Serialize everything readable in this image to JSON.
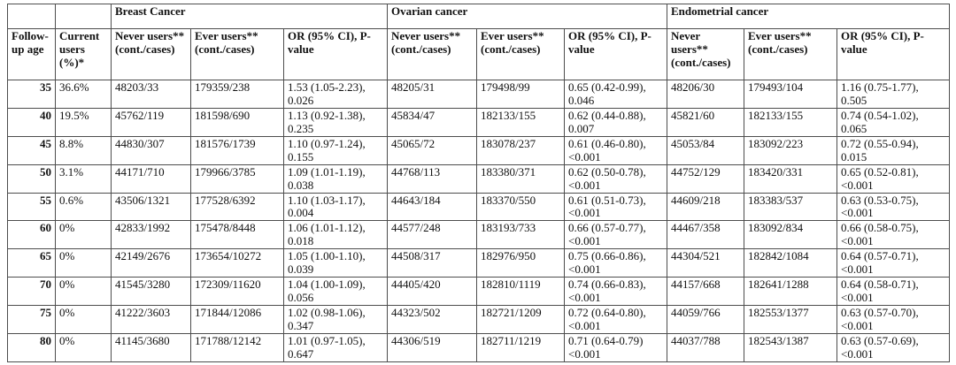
{
  "table": {
    "group_headers": [
      {
        "label": "",
        "span": 1
      },
      {
        "label": "",
        "span": 1
      },
      {
        "label": "Breast Cancer",
        "span": 3
      },
      {
        "label": "Ovarian cancer",
        "span": 3
      },
      {
        "label": "Endometrial cancer",
        "span": 3
      }
    ],
    "column_headers": [
      "Follow-up age",
      "Current users (%)*",
      "Never users** (cont./cases)",
      "Ever users** (cont./cases)",
      "OR (95% CI), P-value",
      "Never users** (cont./cases)",
      "Ever users** (cont./cases)",
      "OR (95% CI), P-value",
      "Never users** (cont./cases)",
      "Ever users** (cont./cases)",
      "OR (95% CI), P-value"
    ],
    "rows": [
      {
        "follow_up_age": "35",
        "current_users_pct": "36.6%",
        "breast": {
          "never": "48203/33",
          "ever": "179359/238",
          "or_p": "1.53 (1.05-2.23),\n0.026"
        },
        "ovarian": {
          "never": "48205/31",
          "ever": "179498/99",
          "or_p": "0.65 (0.42-0.99),\n0.046"
        },
        "endometrial": {
          "never": "48206/30",
          "ever": "179493/104",
          "or_p": "1.16 (0.75-1.77),\n0.505"
        }
      },
      {
        "follow_up_age": "40",
        "current_users_pct": "19.5%",
        "breast": {
          "never": "45762/119",
          "ever": "181598/690",
          "or_p": "1.13 (0.92-1.38),\n0.235"
        },
        "ovarian": {
          "never": "45834/47",
          "ever": "182133/155",
          "or_p": "0.62 (0.44-0.88),\n0.007"
        },
        "endometrial": {
          "never": "45821/60",
          "ever": "182133/155",
          "or_p": "0.74 (0.54-1.02),\n0.065"
        }
      },
      {
        "follow_up_age": "45",
        "current_users_pct": "8.8%",
        "breast": {
          "never": "44830/307",
          "ever": "181576/1739",
          "or_p": "1.10 (0.97-1.24),\n0.155"
        },
        "ovarian": {
          "never": "45065/72",
          "ever": "183078/237",
          "or_p": "0.61 (0.46-0.80),\n<0.001"
        },
        "endometrial": {
          "never": "45053/84",
          "ever": "183092/223",
          "or_p": "0.72 (0.55-0.94),\n0.015"
        }
      },
      {
        "follow_up_age": "50",
        "current_users_pct": "3.1%",
        "breast": {
          "never": "44171/710",
          "ever": "179966/3785",
          "or_p": "1.09 (1.01-1.19),\n0.038"
        },
        "ovarian": {
          "never": "44768/113",
          "ever": "183380/371",
          "or_p": "0.62 (0.50-0.78),\n<0.001"
        },
        "endometrial": {
          "never": "44752/129",
          "ever": "183420/331",
          "or_p": "0.65 (0.52-0.81),\n<0.001"
        }
      },
      {
        "follow_up_age": "55",
        "current_users_pct": "0.6%",
        "breast": {
          "never": "43506/1321",
          "ever": "177528/6392",
          "or_p": "1.10 (1.03-1.17),\n0.004"
        },
        "ovarian": {
          "never": "44643/184",
          "ever": "183370/550",
          "or_p": "0.61 (0.51-0.73),\n<0.001"
        },
        "endometrial": {
          "never": "44609/218",
          "ever": "183383/537",
          "or_p": "0.63 (0.53-0.75),\n<0.001"
        }
      },
      {
        "follow_up_age": "60",
        "current_users_pct": "0%",
        "breast": {
          "never": "42833/1992",
          "ever": "175478/8448",
          "or_p": "1.06 (1.01-1.12),\n0.018"
        },
        "ovarian": {
          "never": "44577/248",
          "ever": "183193/733",
          "or_p": "0.66 (0.57-0.77),\n<0.001"
        },
        "endometrial": {
          "never": "44467/358",
          "ever": "183092/834",
          "or_p": "0.66 (0.58-0.75),\n<0.001"
        }
      },
      {
        "follow_up_age": "65",
        "current_users_pct": "0%",
        "breast": {
          "never": "42149/2676",
          "ever": "173654/10272",
          "or_p": "1.05 (1.00-1.10),\n0.039"
        },
        "ovarian": {
          "never": "44508/317",
          "ever": "182976/950",
          "or_p": "0.75 (0.66-0.86),\n<0.001"
        },
        "endometrial": {
          "never": "44304/521",
          "ever": "182842/1084",
          "or_p": "0.64 (0.57-0.71),\n<0.001"
        }
      },
      {
        "follow_up_age": "70",
        "current_users_pct": "0%",
        "breast": {
          "never": "41545/3280",
          "ever": "172309/11620",
          "or_p": "1.04 (1.00-1.09),\n0.056"
        },
        "ovarian": {
          "never": "44405/420",
          "ever": "182810/1119",
          "or_p": "0.74 (0.66-0.83),\n<0.001"
        },
        "endometrial": {
          "never": "44157/668",
          "ever": "182641/1288",
          "or_p": "0.64 (0.58-0.71),\n<0.001"
        }
      },
      {
        "follow_up_age": "75",
        "current_users_pct": "0%",
        "breast": {
          "never": "41222/3603",
          "ever": "171844/12086",
          "or_p": "1.02 (0.98-1.06),\n0.347"
        },
        "ovarian": {
          "never": "44323/502",
          "ever": "182721/1209",
          "or_p": "0.72 (0.64-0.80),\n<0.001"
        },
        "endometrial": {
          "never": "44059/766",
          "ever": "182553/1377",
          "or_p": "0.63 (0.57-0.70),\n<0.001"
        }
      },
      {
        "follow_up_age": "80",
        "current_users_pct": "0%",
        "breast": {
          "never": "41145/3680",
          "ever": "171788/12142",
          "or_p": "1.01 (0.97-1.05),\n0.647"
        },
        "ovarian": {
          "never": "44306/519",
          "ever": "182711/1219",
          "or_p": "0.71 (0.64-0.79)\n<0.001"
        },
        "endometrial": {
          "never": "44037/788",
          "ever": "182543/1387",
          "or_p": "0.63 (0.57-0.69),\n<0.001"
        }
      }
    ]
  },
  "colors": {
    "border": "#4d4d4d",
    "text": "#111111",
    "background": "#ffffff"
  }
}
